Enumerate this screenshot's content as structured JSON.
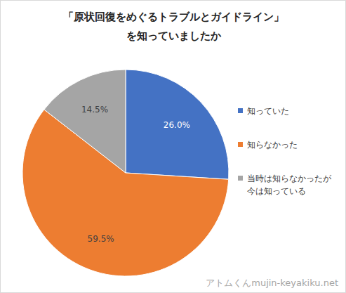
{
  "chart_data": {
    "type": "pie",
    "title": "「原状回復をめぐるトラブルとガイドライン」\nを知っていましたか",
    "categories": [
      "知っていた",
      "知らなかった",
      "当時は知らなかったが今は知っている"
    ],
    "values": [
      26.0,
      59.5,
      14.5
    ],
    "value_labels": [
      "26.0%",
      "59.5%",
      "14.5%"
    ],
    "colors": [
      "#4472c4",
      "#ed7d31",
      "#a5a5a5"
    ],
    "data_labels": true,
    "legend": "right",
    "annotations": [
      "アトムくんmujin-keyakiku.net"
    ]
  }
}
